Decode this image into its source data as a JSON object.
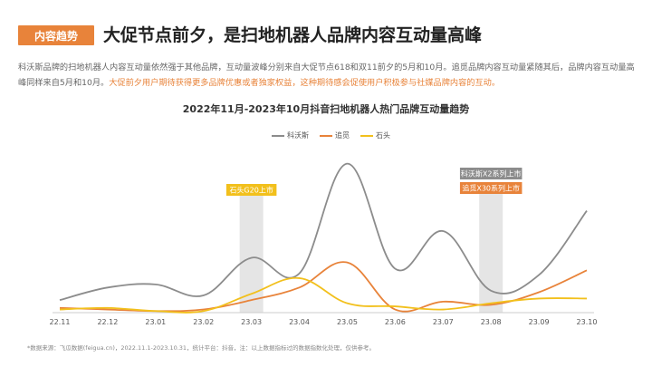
{
  "header": {
    "badge": "内容趋势",
    "title": "大促节点前夕，是扫地机器人品牌内容互动量高峰"
  },
  "description": {
    "text_plain": "科沃斯品牌的扫地机器人内容互动量依然强于其他品牌，互动量波峰分别来自大促节点618和双11前夕的5月和10月。追觅品牌内容互动量紧随其后，品牌内容互动量高峰同样来自5月和10月。",
    "text_highlight": "大促前夕用户期待获得更多品牌优惠或者独家权益，这种期待感会促使用户积极参与社媒品牌内容的互动。"
  },
  "colors": {
    "accent": "#E8833A",
    "kewosi": "#8C8C8C",
    "zhuimi": "#E8833A",
    "shitou": "#F2C01C",
    "annotation_band": "#E5E5E5"
  },
  "chart_data": {
    "type": "line",
    "title": "2022年11月-2023年10月抖音扫地机器人热门品牌互动量趋势",
    "categories": [
      "22.11",
      "22.12",
      "23.01",
      "23.02",
      "23.03",
      "23.04",
      "23.05",
      "23.06",
      "23.07",
      "23.08",
      "23.09",
      "23.10"
    ],
    "legend_position": "top-center",
    "grid": false,
    "ylim": [
      0,
      100
    ],
    "series": [
      {
        "name": "科沃斯",
        "values": [
          8,
          16,
          18,
          11,
          35,
          25,
          95,
          28,
          52,
          14,
          24,
          65
        ]
      },
      {
        "name": "追觅",
        "values": [
          3,
          2,
          1,
          2,
          8,
          16,
          32,
          2,
          7,
          5,
          13,
          27
        ]
      },
      {
        "name": "石头",
        "values": [
          2,
          3,
          1,
          1,
          12,
          22,
          6,
          4,
          2,
          6,
          9,
          9
        ]
      }
    ],
    "annotations": [
      {
        "category": "23.03",
        "label": "石头G20上市",
        "color": "#F2C01C"
      },
      {
        "category": "23.08",
        "label": "科沃斯X2系列上市",
        "color": "#8C8C8C"
      },
      {
        "category": "23.08",
        "label": "追觅X30系列上市",
        "color": "#E8833A"
      }
    ]
  },
  "footnote": "*数据来源：飞瓜数据(feigua.cn)，2022.11.1-2023.10.31，统计平台：抖音，注：以上数据指标过的数据指数化处理，仅供参考。"
}
